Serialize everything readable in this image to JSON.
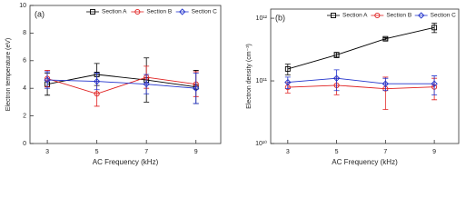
{
  "chart_data": [
    {
      "type": "line",
      "panel_label": "(a)",
      "x_label": "AC Frequency (kHz)",
      "y_label": "Electron temperature (eV)",
      "x": [
        3,
        5,
        7,
        9
      ],
      "xlim": [
        2.3,
        10
      ],
      "xticks": [
        3,
        5,
        7,
        9
      ],
      "ylim": [
        0,
        10
      ],
      "yticks": [
        0,
        2,
        4,
        6,
        8,
        10
      ],
      "log_y": false,
      "legend": "top",
      "series": [
        {
          "name": "Section A",
          "color": "#000000",
          "marker": "square",
          "values": [
            4.3,
            5.0,
            4.6,
            4.1
          ],
          "errors": [
            0.8,
            0.8,
            1.6,
            1.2
          ]
        },
        {
          "name": "Section B",
          "color": "#e02020",
          "marker": "circle",
          "values": [
            4.7,
            3.6,
            4.8,
            4.3
          ],
          "errors": [
            0.6,
            0.9,
            0.8,
            0.9
          ]
        },
        {
          "name": "Section C",
          "color": "#2233cc",
          "marker": "diamond",
          "values": [
            4.6,
            4.5,
            4.3,
            4.0
          ],
          "errors": [
            0.6,
            0.6,
            0.7,
            1.1
          ]
        }
      ]
    },
    {
      "type": "line",
      "panel_label": "(b)",
      "x_label": "AC Frequency (kHz)",
      "y_label": "Electron density (cm⁻³)",
      "x": [
        3,
        5,
        7,
        9
      ],
      "xlim": [
        2.3,
        10
      ],
      "xticks": [
        3,
        5,
        7,
        9
      ],
      "ylim": [
        10000000000,
        1400000000000
      ],
      "log_y": true,
      "legend": "top",
      "yticks": [
        {
          "value": 10000000000,
          "label": "10¹⁰"
        },
        {
          "value": 100000000000,
          "label": "10¹¹"
        },
        {
          "value": 1000000000000,
          "label": "10¹²"
        }
      ],
      "series": [
        {
          "name": "Section A",
          "color": "#000000",
          "marker": "square",
          "values": [
            155000000000,
            260000000000,
            470000000000,
            710000000000
          ],
          "errors": [
            30000000000,
            25000000000,
            20000000000,
            120000000000
          ]
        },
        {
          "name": "Section B",
          "color": "#e02020",
          "marker": "circle",
          "values": [
            79000000000,
            85000000000,
            75000000000,
            80000000000
          ],
          "errors": [
            15000000000,
            25000000000,
            40000000000,
            30000000000
          ]
        },
        {
          "name": "Section C",
          "color": "#2233cc",
          "marker": "diamond",
          "values": [
            95000000000,
            110000000000,
            90000000000,
            90000000000
          ],
          "errors": [
            20000000000,
            40000000000,
            20000000000,
            30000000000
          ]
        }
      ]
    }
  ]
}
